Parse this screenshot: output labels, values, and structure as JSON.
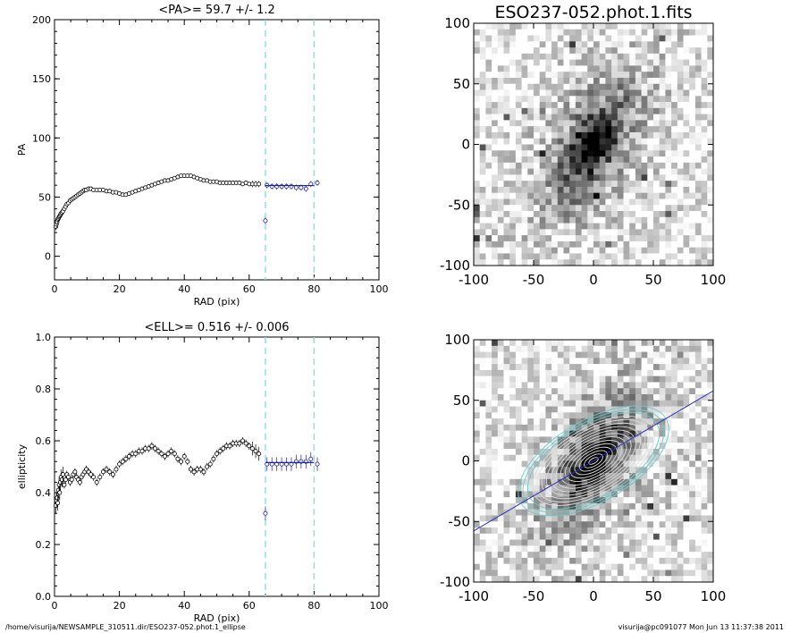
{
  "chart_data": [
    {
      "type": "scatter",
      "title": "<PA>=  59.7 +/-   1.2",
      "xlabel": "RAD (pix)",
      "ylabel": "PA",
      "xlim": [
        0,
        100
      ],
      "ylim": [
        -20,
        200
      ],
      "xticks": [
        "0",
        "20",
        "40",
        "60",
        "80",
        "100"
      ],
      "yticks": [
        "0",
        "50",
        "100",
        "150",
        "200"
      ],
      "vlines": [
        65,
        80
      ],
      "mean_line": {
        "x": [
          65,
          80
        ],
        "y": 59.7
      },
      "series": [
        {
          "role": "all-points",
          "points": [
            [
              0.4,
              25
            ],
            [
              0.6,
              27
            ],
            [
              0.8,
              29
            ],
            [
              1.0,
              31
            ],
            [
              1.2,
              32
            ],
            [
              1.4,
              33
            ],
            [
              1.6,
              34
            ],
            [
              1.8,
              35
            ],
            [
              2.0,
              36
            ],
            [
              2.3,
              37
            ],
            [
              2.6,
              38
            ],
            [
              3.0,
              40
            ],
            [
              3.4,
              42
            ],
            [
              3.8,
              44
            ],
            [
              4.3,
              45
            ],
            [
              4.8,
              47
            ],
            [
              5.3,
              48
            ],
            [
              5.8,
              49
            ],
            [
              6.3,
              50
            ],
            [
              6.8,
              51
            ],
            [
              7.3,
              52
            ],
            [
              7.8,
              53
            ],
            [
              8.3,
              54
            ],
            [
              8.8,
              55
            ],
            [
              9.3,
              56
            ],
            [
              9.8,
              56
            ],
            [
              10.5,
              57
            ],
            [
              11.2,
              57
            ],
            [
              12,
              56
            ],
            [
              13,
              56
            ],
            [
              14,
              56
            ],
            [
              15,
              56
            ],
            [
              16,
              55
            ],
            [
              17,
              55
            ],
            [
              18,
              54
            ],
            [
              19,
              54
            ],
            [
              20,
              53
            ],
            [
              21,
              52
            ],
            [
              22,
              52
            ],
            [
              23,
              53
            ],
            [
              24,
              54
            ],
            [
              25,
              55
            ],
            [
              26,
              56
            ],
            [
              27,
              57
            ],
            [
              28,
              58
            ],
            [
              29,
              59
            ],
            [
              30,
              60
            ],
            [
              31,
              61
            ],
            [
              32,
              62
            ],
            [
              33,
              63
            ],
            [
              34,
              64
            ],
            [
              35,
              64
            ],
            [
              36,
              65
            ],
            [
              37,
              66
            ],
            [
              38,
              67
            ],
            [
              39,
              68
            ],
            [
              40,
              68
            ],
            [
              41,
              68
            ],
            [
              42,
              68
            ],
            [
              43,
              67
            ],
            [
              44,
              66
            ],
            [
              45,
              65
            ],
            [
              46,
              64
            ],
            [
              47,
              64
            ],
            [
              48,
              63
            ],
            [
              49,
              63
            ],
            [
              50,
              63
            ],
            [
              51,
              62
            ],
            [
              52,
              62
            ],
            [
              53,
              62
            ],
            [
              54,
              62
            ],
            [
              55,
              62
            ],
            [
              56,
              62
            ],
            [
              57,
              62
            ],
            [
              58,
              61
            ],
            [
              59,
              62
            ],
            [
              60,
              61
            ],
            [
              61,
              61
            ],
            [
              62,
              61
            ],
            [
              63,
              61
            ]
          ]
        },
        {
          "role": "fit-points",
          "points": [
            [
              65,
              30
            ],
            [
              65.5,
              60
            ],
            [
              67,
              59
            ],
            [
              68.5,
              59
            ],
            [
              70,
              59
            ],
            [
              71.5,
              59
            ],
            [
              73,
              59
            ],
            [
              74.5,
              58
            ],
            [
              76,
              58
            ],
            [
              77.5,
              57
            ],
            [
              79,
              61
            ],
            [
              81,
              62
            ]
          ]
        }
      ]
    },
    {
      "type": "scatter",
      "title": "<ELL>= 0.516 +/-  0.006",
      "xlabel": "RAD (pix)",
      "ylabel": "ellipticity",
      "xlim": [
        0,
        100
      ],
      "ylim": [
        0.0,
        1.0
      ],
      "xticks": [
        "0",
        "20",
        "40",
        "60",
        "80",
        "100"
      ],
      "yticks": [
        "0.0",
        "0.2",
        "0.4",
        "0.6",
        "0.8",
        "1.0"
      ],
      "vlines": [
        65,
        80
      ],
      "mean_line": {
        "x": [
          65,
          80
        ],
        "y": 0.516
      },
      "series": [
        {
          "role": "all-points",
          "points": [
            [
              0.4,
              0.35
            ],
            [
              0.6,
              0.37
            ],
            [
              0.8,
              0.38
            ],
            [
              1.0,
              0.36
            ],
            [
              1.2,
              0.41
            ],
            [
              1.4,
              0.43
            ],
            [
              1.6,
              0.4
            ],
            [
              1.8,
              0.44
            ],
            [
              2.0,
              0.46
            ],
            [
              2.3,
              0.45
            ],
            [
              2.6,
              0.47
            ],
            [
              3.0,
              0.43
            ],
            [
              3.4,
              0.45
            ],
            [
              3.8,
              0.47
            ],
            [
              4.3,
              0.46
            ],
            [
              4.8,
              0.44
            ],
            [
              5.3,
              0.45
            ],
            [
              5.8,
              0.47
            ],
            [
              6.3,
              0.48
            ],
            [
              6.8,
              0.46
            ],
            [
              7.3,
              0.45
            ],
            [
              7.8,
              0.44
            ],
            [
              8.3,
              0.46
            ],
            [
              8.8,
              0.47
            ],
            [
              9.3,
              0.48
            ],
            [
              9.8,
              0.49
            ],
            [
              10.5,
              0.48
            ],
            [
              11.2,
              0.47
            ],
            [
              12,
              0.46
            ],
            [
              13,
              0.44
            ],
            [
              14,
              0.46
            ],
            [
              15,
              0.48
            ],
            [
              16,
              0.49
            ],
            [
              17,
              0.48
            ],
            [
              18,
              0.47
            ],
            [
              19,
              0.49
            ],
            [
              20,
              0.51
            ],
            [
              21,
              0.52
            ],
            [
              22,
              0.53
            ],
            [
              23,
              0.54
            ],
            [
              24,
              0.55
            ],
            [
              25,
              0.55
            ],
            [
              26,
              0.56
            ],
            [
              27,
              0.56
            ],
            [
              28,
              0.57
            ],
            [
              29,
              0.57
            ],
            [
              30,
              0.58
            ],
            [
              31,
              0.57
            ],
            [
              32,
              0.56
            ],
            [
              33,
              0.55
            ],
            [
              34,
              0.54
            ],
            [
              35,
              0.55
            ],
            [
              36,
              0.56
            ],
            [
              37,
              0.55
            ],
            [
              38,
              0.53
            ],
            [
              39,
              0.52
            ],
            [
              40,
              0.54
            ],
            [
              41,
              0.52
            ],
            [
              42,
              0.49
            ],
            [
              43,
              0.48
            ],
            [
              44,
              0.49
            ],
            [
              45,
              0.49
            ],
            [
              46,
              0.48
            ],
            [
              47,
              0.5
            ],
            [
              48,
              0.51
            ],
            [
              49,
              0.53
            ],
            [
              50,
              0.55
            ],
            [
              51,
              0.56
            ],
            [
              52,
              0.57
            ],
            [
              53,
              0.58
            ],
            [
              54,
              0.58
            ],
            [
              55,
              0.59
            ],
            [
              56,
              0.59
            ],
            [
              57,
              0.59
            ],
            [
              58,
              0.6
            ],
            [
              59,
              0.59
            ],
            [
              60,
              0.58
            ],
            [
              61,
              0.57
            ],
            [
              62,
              0.56
            ],
            [
              63,
              0.55
            ]
          ]
        },
        {
          "role": "fit-points",
          "points": [
            [
              65,
              0.32
            ],
            [
              65.5,
              0.51
            ],
            [
              67,
              0.51
            ],
            [
              68.5,
              0.51
            ],
            [
              70,
              0.51
            ],
            [
              71.5,
              0.51
            ],
            [
              73,
              0.51
            ],
            [
              74.5,
              0.52
            ],
            [
              76,
              0.52
            ],
            [
              77.5,
              0.52
            ],
            [
              79,
              0.53
            ],
            [
              81,
              0.51
            ]
          ]
        }
      ]
    },
    {
      "type": "heatmap",
      "title": "ESO237-052.phot.1.fits",
      "xlim": [
        -100,
        100
      ],
      "ylim": [
        -100,
        100
      ],
      "xticks": [
        "-100",
        "-50",
        "0",
        "50",
        "100"
      ],
      "yticks": [
        "100",
        "50",
        "0",
        "-50",
        "-100"
      ],
      "source": {
        "center": [
          0,
          0
        ],
        "pa_deg": 59.7,
        "ellipticity": 0.516,
        "scale": 38
      }
    },
    {
      "type": "heatmap",
      "title": "",
      "xlim": [
        -100,
        100
      ],
      "ylim": [
        -100,
        100
      ],
      "xticks": [
        "-100",
        "-50",
        "0",
        "50",
        "100"
      ],
      "yticks": [
        "100",
        "50",
        "0",
        "-50",
        "-100"
      ],
      "source": {
        "center": [
          0,
          0
        ],
        "pa_deg": 59.7,
        "ellipticity": 0.516,
        "scale": 38
      },
      "isophotes": {
        "count": 16,
        "max_sma": 70,
        "color_inner": "#dddddd",
        "color_outer": "#66cccc"
      },
      "major_axis_line_color": "#3030c0"
    }
  ],
  "footer": {
    "left": "/home/visurija/NEWSAMPLE_310511.dir/ESO237-052.phot.1_ellipse",
    "right": "visurija@pc091077  Mon Jun 13 11:37:38 2011"
  },
  "colors": {
    "fit": "#2020a0",
    "vline": "#88dddd",
    "axes": "#000000"
  }
}
